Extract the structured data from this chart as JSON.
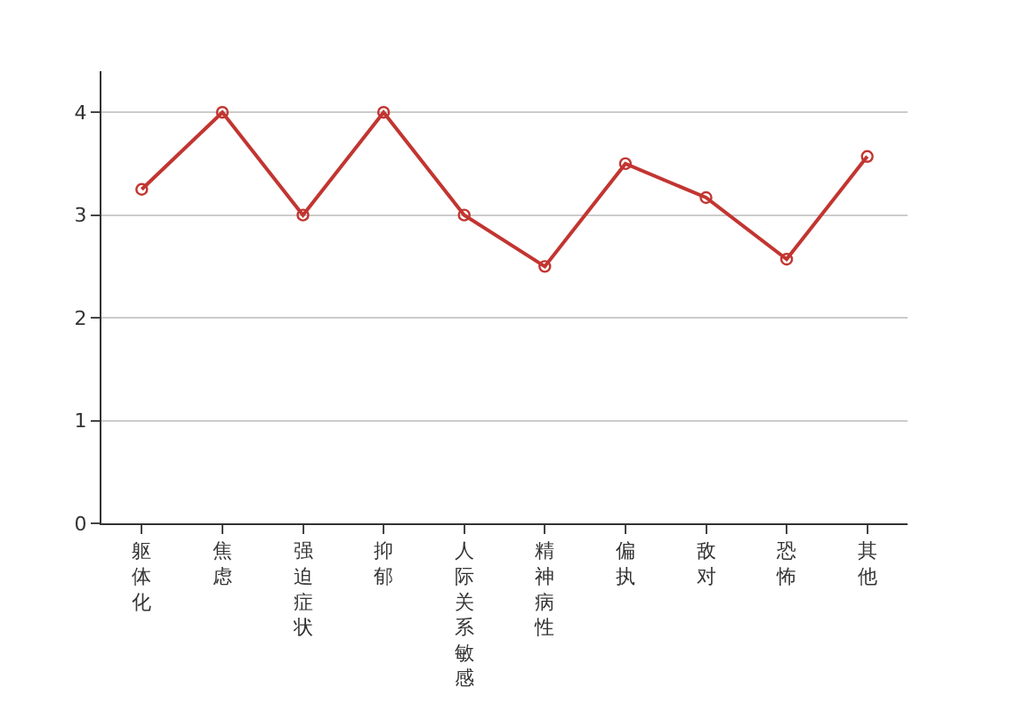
{
  "chart_data": {
    "type": "line",
    "categories": [
      "躯体化",
      "焦虑",
      "强迫症状",
      "抑郁",
      "人际关系敏感",
      "精神病性",
      "偏执",
      "敌对",
      "恐怖",
      "其他"
    ],
    "series": [
      {
        "color": "#c23531",
        "values": [
          3.25,
          4,
          3,
          4,
          3,
          2.5,
          3.5,
          3.17,
          2.57,
          3.57
        ]
      }
    ],
    "ylim": [
      0,
      4.4
    ],
    "yticks": [
      0,
      1,
      2,
      3,
      4
    ],
    "grid": "y",
    "marker": "circle",
    "line_style": "solid"
  }
}
